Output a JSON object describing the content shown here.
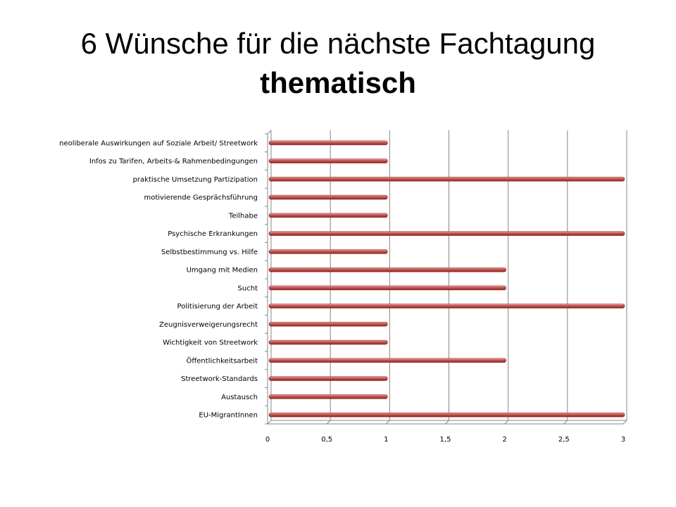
{
  "title": {
    "line1": "6 Wünsche für die nächste Fachtagung",
    "line2": "thematisch"
  },
  "colors": {
    "bar": "#c0504d",
    "bar_dark": "#8c2b28",
    "bar_light": "#e8a6a4",
    "grid": "#868686",
    "axis": "#868686"
  },
  "chart_data": {
    "type": "bar",
    "orientation": "horizontal",
    "style": "3d-cylinder",
    "title": "",
    "xlabel": "",
    "ylabel": "",
    "xlim": [
      0,
      3
    ],
    "x_ticks": [
      {
        "value": 0,
        "label": "0"
      },
      {
        "value": 0.5,
        "label": "0,5"
      },
      {
        "value": 1,
        "label": "1"
      },
      {
        "value": 1.5,
        "label": "1,5"
      },
      {
        "value": 2,
        "label": "2"
      },
      {
        "value": 2.5,
        "label": "2,5"
      },
      {
        "value": 3,
        "label": "3"
      }
    ],
    "grid": true,
    "legend": "none",
    "categories": [
      "neoliberale Auswirkungen auf Soziale Arbeit/ Streetwork",
      "Infos zu Tarifen, Arbeits-& Rahmenbedingungen",
      "praktische Umsetzung Partizipation",
      "motivierende Gesprächsführung",
      "Teilhabe",
      "Psychische Erkrankungen",
      "Selbstbestimmung vs. Hilfe",
      "Umgang mit Medien",
      "Sucht",
      "Politisierung der Arbeit",
      "Zeugnisverweigerungsrecht",
      "Wichtigkeit von Streetwork",
      "Öffentlichkeitsarbeit",
      "Streetwork-Standards",
      "Austausch",
      "EU-MigrantInnen"
    ],
    "values": [
      1,
      1,
      3,
      1,
      1,
      3,
      1,
      2,
      2,
      3,
      1,
      1,
      2,
      1,
      1,
      3
    ]
  }
}
